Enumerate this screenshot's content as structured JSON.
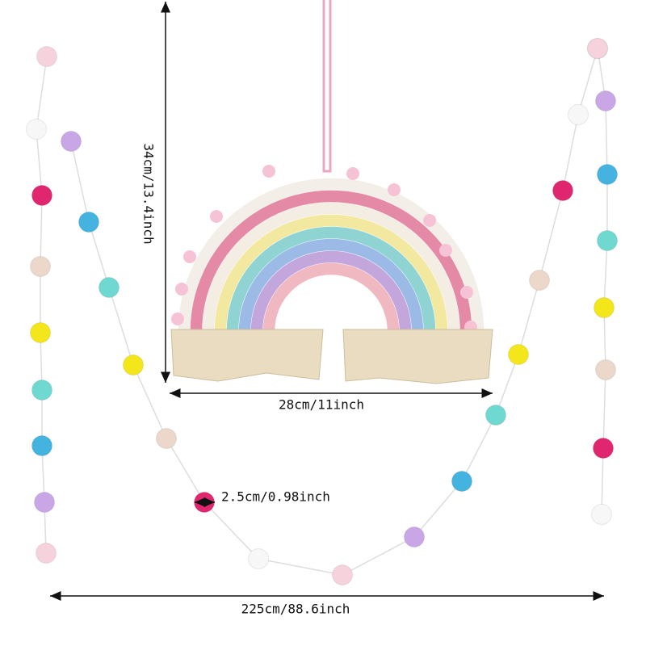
{
  "dimensions": {
    "height": "34cm/13.4inch",
    "width": "28cm/11inch",
    "ball_diameter": "2.5cm/0.98inch",
    "garland_length": "225cm/88.6inch"
  }
}
